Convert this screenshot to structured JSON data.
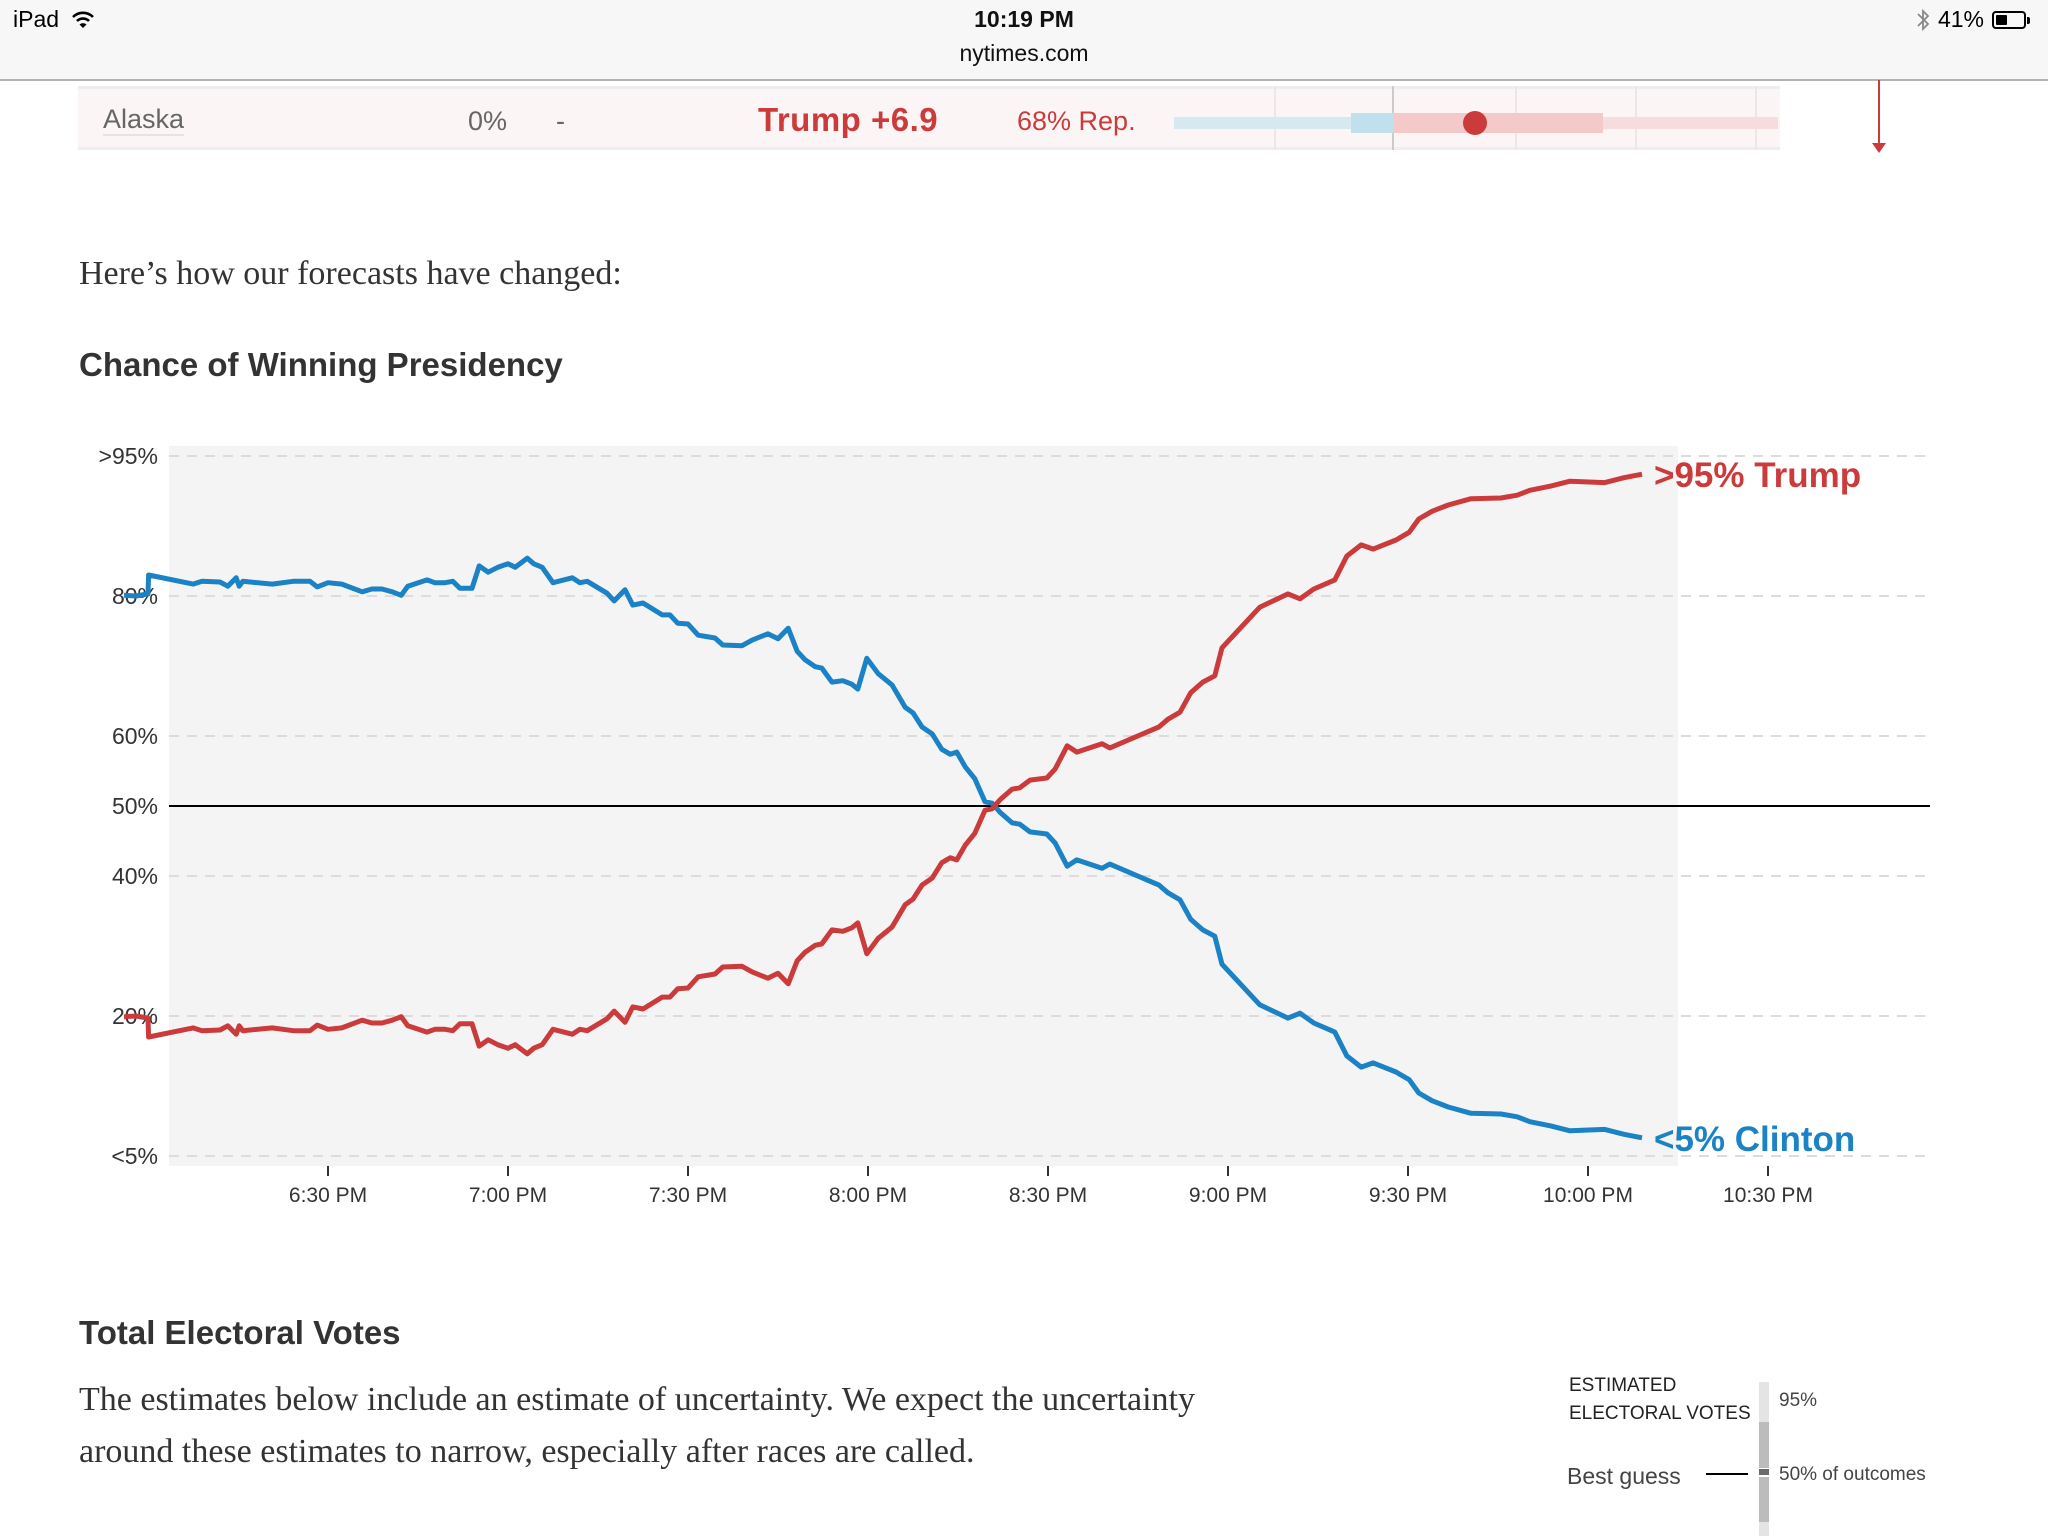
{
  "status_bar": {
    "device": "iPad",
    "time": "10:19 PM",
    "url": "nytimes.com",
    "battery": "41%",
    "battery_level": 0.41,
    "icons": [
      "wifi-icon",
      "bluetooth-icon",
      "battery-icon"
    ]
  },
  "state_row": {
    "state": "Alaska",
    "reporting": "0%",
    "dash": "-",
    "margin": "Trump +6.9",
    "probability": "68% Rep.",
    "colors": {
      "rep": "#cc3b3b",
      "dem_light": "#d6e9f0",
      "dem_mid": "#bfe0ec",
      "rep_mid": "#f3cac9",
      "rep_light": "#f7dcdd"
    }
  },
  "intro_text": "Here’s how our forecasts have changed:",
  "chart_title": "Chance of Winning Presidency",
  "chart_data": {
    "type": "line",
    "title": "Chance of Winning Presidency",
    "xlabel": "",
    "ylabel": "",
    "x_unit": "minutes after 6:00 PM",
    "xlim": [
      -4,
      285
    ],
    "ylim": [
      0,
      100
    ],
    "grid": true,
    "yticks": [
      {
        "value": 100,
        "label": ">95%"
      },
      {
        "value": 80,
        "label": "80%"
      },
      {
        "value": 60,
        "label": "60%"
      },
      {
        "value": 50,
        "label": "50%"
      },
      {
        "value": 40,
        "label": "40%"
      },
      {
        "value": 20,
        "label": "20%"
      },
      {
        "value": 0,
        "label": "<5%"
      }
    ],
    "xticks": [
      {
        "value": 30,
        "label": "6:30 PM"
      },
      {
        "value": 60,
        "label": "7:00 PM"
      },
      {
        "value": 90,
        "label": "7:30 PM"
      },
      {
        "value": 120,
        "label": "8:00 PM"
      },
      {
        "value": 150,
        "label": "8:30 PM"
      },
      {
        "value": 180,
        "label": "9:00 PM"
      },
      {
        "value": 210,
        "label": "9:30 PM"
      },
      {
        "value": 240,
        "label": "10:00 PM"
      },
      {
        "value": 270,
        "label": "10:30 PM"
      }
    ],
    "reference_line": 50,
    "series": [
      {
        "name": "Clinton",
        "color": "#1a82c5",
        "end_label": "<5% Clinton",
        "points": [
          [
            -4,
            80.1
          ],
          [
            -2,
            80
          ],
          [
            0,
            80.3
          ],
          [
            0.1,
            83.0
          ],
          [
            7.5,
            81.7
          ],
          [
            9,
            82.1
          ],
          [
            12,
            82.0
          ],
          [
            13.3,
            81.4
          ],
          [
            14.7,
            82.6
          ],
          [
            15.2,
            81.4
          ],
          [
            15.8,
            82.1
          ],
          [
            20.7,
            81.7
          ],
          [
            24.2,
            82.1
          ],
          [
            27,
            82.1
          ],
          [
            28.2,
            81.3
          ],
          [
            30,
            81.9
          ],
          [
            32.3,
            81.7
          ],
          [
            35.7,
            80.6
          ],
          [
            37.3,
            81.0
          ],
          [
            39,
            81.0
          ],
          [
            40.7,
            80.6
          ],
          [
            42.2,
            80.1
          ],
          [
            43.3,
            81.4
          ],
          [
            46.5,
            82.3
          ],
          [
            47.8,
            81.9
          ],
          [
            49.5,
            81.9
          ],
          [
            50.8,
            82.1
          ],
          [
            52,
            81.1
          ],
          [
            54,
            81.1
          ],
          [
            55.2,
            84.3
          ],
          [
            56.7,
            83.4
          ],
          [
            58.3,
            84.1
          ],
          [
            60,
            84.6
          ],
          [
            61.2,
            84.1
          ],
          [
            63.2,
            85.4
          ],
          [
            64.3,
            84.6
          ],
          [
            65.7,
            84.1
          ],
          [
            67.5,
            81.9
          ],
          [
            70.7,
            82.6
          ],
          [
            72,
            81.9
          ],
          [
            73.2,
            82.1
          ],
          [
            76.5,
            80.4
          ],
          [
            77.7,
            79.3
          ],
          [
            79.5,
            80.9
          ],
          [
            80.8,
            78.7
          ],
          [
            82.5,
            79.0
          ],
          [
            85.7,
            77.3
          ],
          [
            87,
            77.3
          ],
          [
            88.3,
            76.1
          ],
          [
            90,
            76.0
          ],
          [
            91.7,
            74.4
          ],
          [
            94.5,
            74.0
          ],
          [
            95.8,
            73.0
          ],
          [
            99,
            72.9
          ],
          [
            100.7,
            73.7
          ],
          [
            103.3,
            74.6
          ],
          [
            105,
            73.9
          ],
          [
            106.7,
            75.4
          ],
          [
            108.2,
            72.1
          ],
          [
            109.5,
            70.9
          ],
          [
            111.2,
            69.9
          ],
          [
            112.3,
            69.7
          ],
          [
            114,
            67.7
          ],
          [
            115.8,
            67.9
          ],
          [
            117.3,
            67.4
          ],
          [
            118.3,
            66.7
          ],
          [
            119.8,
            71.1
          ],
          [
            121.7,
            68.9
          ],
          [
            124,
            67.3
          ],
          [
            126.2,
            64.1
          ],
          [
            127.5,
            63.3
          ],
          [
            129,
            61.3
          ],
          [
            130.7,
            60.3
          ],
          [
            132.3,
            58.1
          ],
          [
            133.7,
            57.4
          ],
          [
            134.8,
            57.7
          ],
          [
            136.2,
            55.6
          ],
          [
            137.8,
            53.9
          ],
          [
            139.5,
            50.6
          ],
          [
            140.7,
            50.4
          ],
          [
            142,
            49.1
          ],
          [
            144,
            47.6
          ],
          [
            145.3,
            47.4
          ],
          [
            147,
            46.3
          ],
          [
            149.8,
            46.0
          ],
          [
            151.2,
            44.7
          ],
          [
            153.2,
            41.4
          ],
          [
            154.8,
            42.3
          ],
          [
            159,
            41.1
          ],
          [
            160.3,
            41.7
          ],
          [
            168.5,
            38.7
          ],
          [
            170,
            37.6
          ],
          [
            172,
            36.6
          ],
          [
            173.8,
            33.8
          ],
          [
            175.8,
            32.3
          ],
          [
            177.8,
            31.4
          ],
          [
            179,
            27.4
          ],
          [
            185.3,
            21.6
          ],
          [
            190,
            19.7
          ],
          [
            192,
            20.4
          ],
          [
            194.3,
            19.0
          ],
          [
            197.8,
            17.7
          ],
          [
            199.8,
            14.3
          ],
          [
            202.2,
            12.7
          ],
          [
            204.2,
            13.3
          ],
          [
            208,
            12.0
          ],
          [
            210.2,
            10.9
          ],
          [
            211.8,
            9.0
          ],
          [
            214,
            7.9
          ],
          [
            216.7,
            7.0
          ],
          [
            220.5,
            6.1
          ],
          [
            225.5,
            6.0
          ],
          [
            228.2,
            5.6
          ],
          [
            230.3,
            4.9
          ],
          [
            233.8,
            4.3
          ],
          [
            237,
            3.6
          ],
          [
            242.8,
            3.8
          ],
          [
            246,
            3.1
          ],
          [
            249,
            2.6
          ]
        ]
      },
      {
        "name": "Trump",
        "color": "#cc3b3b",
        "end_label": ">95% Trump",
        "mirror_of": "Clinton",
        "points": [
          [
            -4,
            19.9
          ],
          [
            -2,
            20
          ],
          [
            0,
            19.7
          ],
          [
            0.1,
            17.0
          ],
          [
            7.5,
            18.3
          ],
          [
            9,
            17.9
          ],
          [
            12,
            18.0
          ],
          [
            13.3,
            18.6
          ],
          [
            14.7,
            17.4
          ],
          [
            15.2,
            18.6
          ],
          [
            15.8,
            17.9
          ],
          [
            20.7,
            18.3
          ],
          [
            24.2,
            17.9
          ],
          [
            27,
            17.9
          ],
          [
            28.2,
            18.7
          ],
          [
            30,
            18.1
          ],
          [
            32.3,
            18.3
          ],
          [
            35.7,
            19.4
          ],
          [
            37.3,
            19.0
          ],
          [
            39,
            19.0
          ],
          [
            40.7,
            19.4
          ],
          [
            42.2,
            19.9
          ],
          [
            43.3,
            18.6
          ],
          [
            46.5,
            17.7
          ],
          [
            47.8,
            18.1
          ],
          [
            49.5,
            18.1
          ],
          [
            50.8,
            17.9
          ],
          [
            52,
            18.9
          ],
          [
            54,
            18.9
          ],
          [
            55.2,
            15.7
          ],
          [
            56.7,
            16.6
          ],
          [
            58.3,
            15.9
          ],
          [
            60,
            15.4
          ],
          [
            61.2,
            15.9
          ],
          [
            63.2,
            14.6
          ],
          [
            64.3,
            15.4
          ],
          [
            65.7,
            15.9
          ],
          [
            67.5,
            18.1
          ],
          [
            70.7,
            17.4
          ],
          [
            72,
            18.1
          ],
          [
            73.2,
            17.9
          ],
          [
            76.5,
            19.6
          ],
          [
            77.7,
            20.7
          ],
          [
            79.5,
            19.1
          ],
          [
            80.8,
            21.3
          ],
          [
            82.5,
            21.0
          ],
          [
            85.7,
            22.7
          ],
          [
            87,
            22.7
          ],
          [
            88.3,
            23.9
          ],
          [
            90,
            24.0
          ],
          [
            91.7,
            25.6
          ],
          [
            94.5,
            26.0
          ],
          [
            95.8,
            27.0
          ],
          [
            99,
            27.1
          ],
          [
            100.7,
            26.3
          ],
          [
            103.3,
            25.4
          ],
          [
            105,
            26.1
          ],
          [
            106.7,
            24.6
          ],
          [
            108.2,
            27.9
          ],
          [
            109.5,
            29.1
          ],
          [
            111.2,
            30.1
          ],
          [
            112.3,
            30.3
          ],
          [
            114,
            32.3
          ],
          [
            115.8,
            32.1
          ],
          [
            117.3,
            32.6
          ],
          [
            118.3,
            33.3
          ],
          [
            119.8,
            28.9
          ],
          [
            121.7,
            31.1
          ],
          [
            124,
            32.7
          ],
          [
            126.2,
            35.9
          ],
          [
            127.5,
            36.7
          ],
          [
            129,
            38.7
          ],
          [
            130.7,
            39.7
          ],
          [
            132.3,
            41.9
          ],
          [
            133.7,
            42.6
          ],
          [
            134.8,
            42.3
          ],
          [
            136.2,
            44.4
          ],
          [
            137.8,
            46.1
          ],
          [
            139.5,
            49.4
          ],
          [
            140.7,
            49.6
          ],
          [
            142,
            50.9
          ],
          [
            144,
            52.4
          ],
          [
            145.3,
            52.6
          ],
          [
            147,
            53.7
          ],
          [
            149.8,
            54.0
          ],
          [
            151.2,
            55.3
          ],
          [
            153.2,
            58.6
          ],
          [
            154.8,
            57.7
          ],
          [
            159,
            58.9
          ],
          [
            160.3,
            58.3
          ],
          [
            168.5,
            61.3
          ],
          [
            170,
            62.4
          ],
          [
            172,
            63.4
          ],
          [
            173.8,
            66.2
          ],
          [
            175.8,
            67.7
          ],
          [
            177.8,
            68.6
          ],
          [
            179,
            72.6
          ],
          [
            185.3,
            78.4
          ],
          [
            190,
            80.3
          ],
          [
            192,
            79.6
          ],
          [
            194.3,
            81.0
          ],
          [
            197.8,
            82.3
          ],
          [
            199.8,
            85.7
          ],
          [
            202.2,
            87.3
          ],
          [
            204.2,
            86.7
          ],
          [
            208,
            88.0
          ],
          [
            210.2,
            89.1
          ],
          [
            211.8,
            91.0
          ],
          [
            214,
            92.1
          ],
          [
            216.7,
            93.0
          ],
          [
            220.5,
            93.9
          ],
          [
            225.5,
            94.0
          ],
          [
            228.2,
            94.4
          ],
          [
            230.3,
            95.1
          ],
          [
            233.8,
            95.7
          ],
          [
            237,
            96.4
          ],
          [
            242.8,
            96.2
          ],
          [
            246,
            96.9
          ],
          [
            249,
            97.4
          ]
        ]
      }
    ]
  },
  "electoral": {
    "title": "Total Electoral Votes",
    "description": "The estimates below include an estimate of uncertainty. We expect the uncertainty around these estimates to narrow, especially after races are called.",
    "legend": {
      "title_line1": "ESTIMATED",
      "title_line2": "ELECTORAL VOTES",
      "best_guess": "Best guess",
      "outer_label": "95%",
      "inner_label": "50% of outcomes"
    }
  }
}
